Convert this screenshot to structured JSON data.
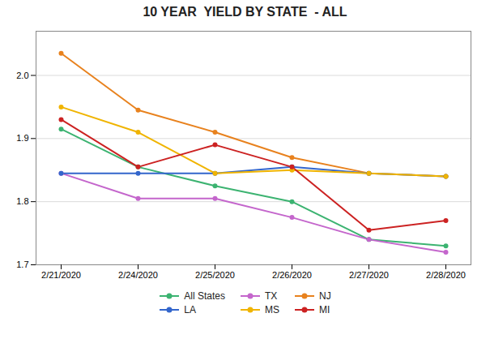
{
  "chart_data": {
    "type": "line",
    "title": "10 YEAR  YIELD BY STATE  - ALL",
    "categories": [
      "2/21/2020",
      "2/24/2020",
      "2/25/2020",
      "2/26/2020",
      "2/27/2020",
      "2/28/2020"
    ],
    "series": [
      {
        "name": "All States",
        "color": "#3cb371",
        "marker": "circle",
        "values": [
          1.915,
          1.855,
          1.825,
          1.8,
          1.74,
          1.73
        ]
      },
      {
        "name": "TX",
        "color": "#c466cc",
        "marker": "circle",
        "values": [
          1.845,
          1.805,
          1.805,
          1.775,
          1.74,
          1.72
        ]
      },
      {
        "name": "NJ",
        "color": "#e8821e",
        "marker": "circle",
        "values": [
          2.035,
          1.945,
          1.91,
          1.87,
          1.845,
          1.84
        ]
      },
      {
        "name": "LA",
        "color": "#3366cc",
        "marker": "circle",
        "values": [
          1.845,
          1.845,
          1.845,
          1.855,
          1.845,
          1.84
        ]
      },
      {
        "name": "MS",
        "color": "#f0b400",
        "marker": "circle",
        "values": [
          1.95,
          1.91,
          1.845,
          1.85,
          1.845,
          1.84
        ]
      },
      {
        "name": "MI",
        "color": "#cc2222",
        "marker": "circle",
        "values": [
          1.93,
          1.855,
          1.89,
          1.855,
          1.755,
          1.77
        ]
      }
    ],
    "ylim": [
      1.7,
      2.07
    ],
    "yticks": [
      1.7,
      1.8,
      1.9,
      {
        "value": 2.0,
        "label": "2.0"
      }
    ],
    "grid": true,
    "legend": "bottom"
  }
}
